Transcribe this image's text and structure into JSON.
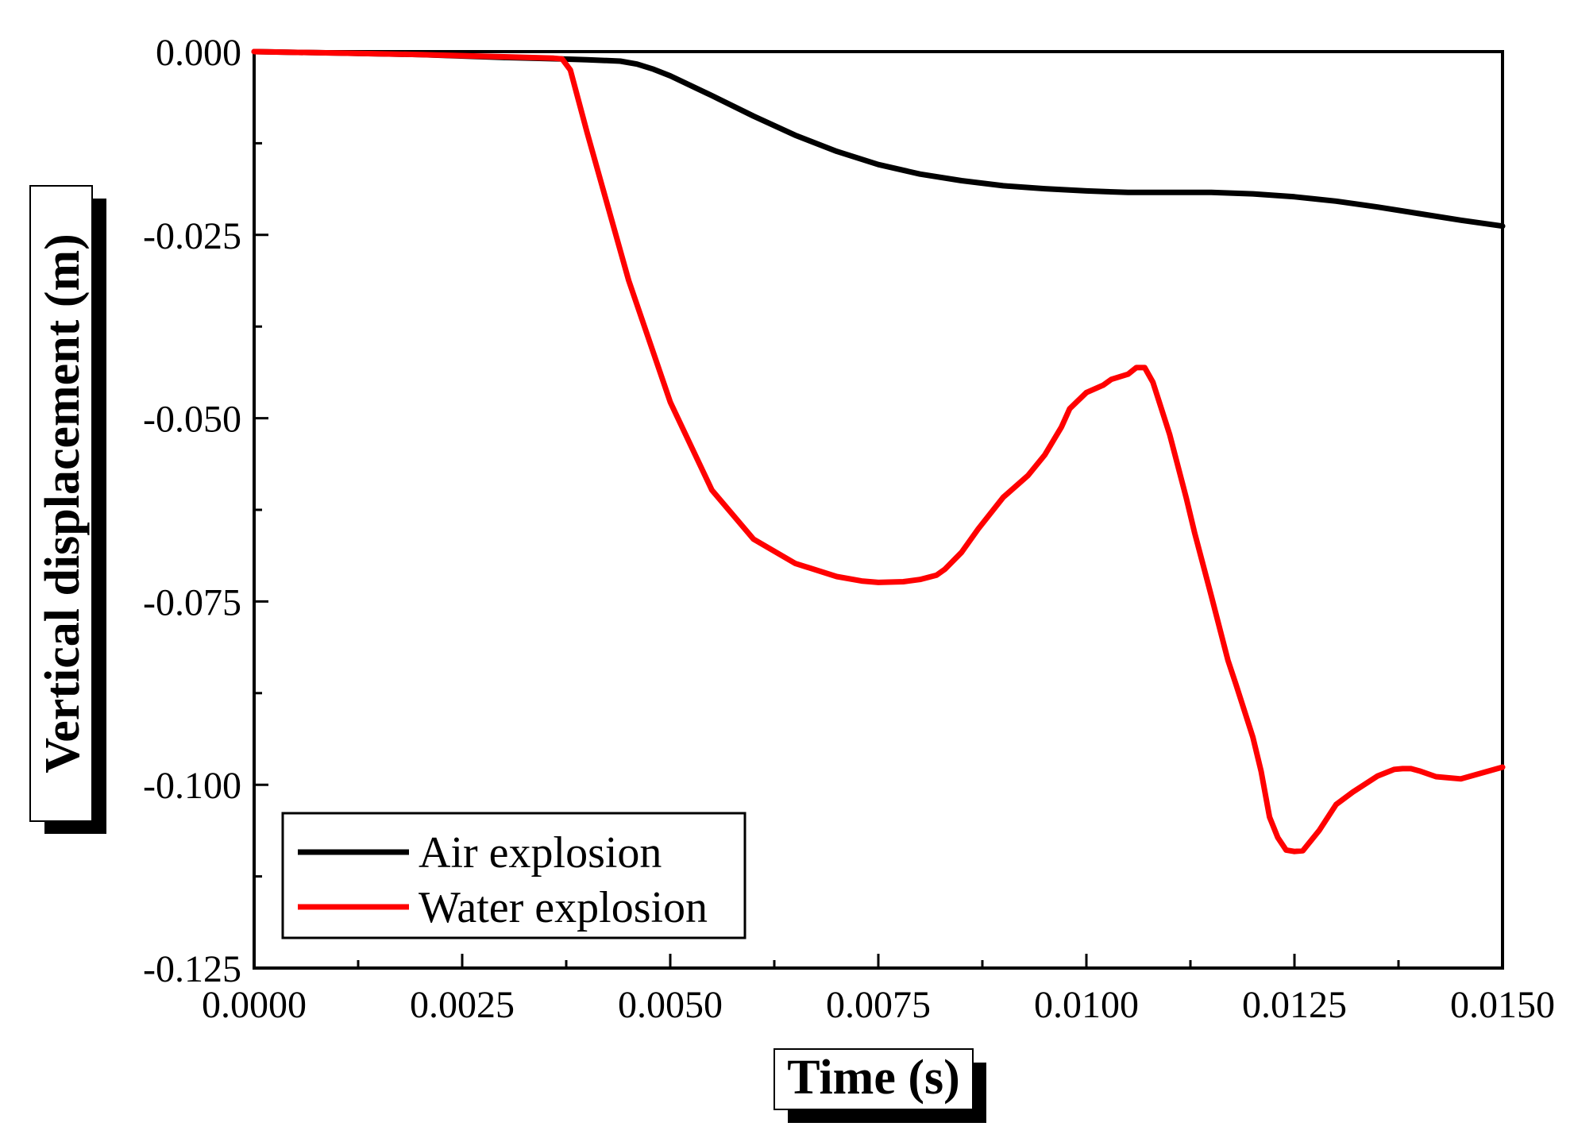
{
  "chart_data": {
    "type": "line",
    "title": "",
    "xlabel": "Time (s)",
    "ylabel": "Vertical displacement (m)",
    "xlim": [
      0,
      0.015
    ],
    "ylim": [
      -0.125,
      0
    ],
    "xticks": [
      0,
      0.0025,
      0.005,
      0.0075,
      0.01,
      0.0125,
      0.015
    ],
    "xtick_labels": [
      "0.0000",
      "0.0025",
      "0.0050",
      "0.0075",
      "0.0100",
      "0.0125",
      "0.0150"
    ],
    "yticks": [
      0,
      -0.025,
      -0.05,
      -0.075,
      -0.1,
      -0.125
    ],
    "ytick_labels": [
      "0.000",
      "-0.025",
      "-0.050",
      "-0.075",
      "-0.100",
      "-0.125"
    ],
    "grid": false,
    "legend_position": "bottom-left",
    "series": [
      {
        "name": "Air explosion",
        "color": "#000000",
        "x": [
          0,
          0.001,
          0.002,
          0.003,
          0.0037,
          0.004,
          0.0044,
          0.0046,
          0.0048,
          0.005,
          0.0055,
          0.006,
          0.0065,
          0.007,
          0.0075,
          0.008,
          0.0085,
          0.009,
          0.0095,
          0.01,
          0.0105,
          0.011,
          0.0115,
          0.012,
          0.0125,
          0.013,
          0.0135,
          0.014,
          0.0145,
          0.015
        ],
        "y": [
          0,
          -0.0002,
          -0.0004,
          -0.0008,
          -0.001,
          -0.0011,
          -0.0013,
          -0.0017,
          -0.0024,
          -0.0033,
          -0.006,
          -0.0088,
          -0.0114,
          -0.0136,
          -0.0154,
          -0.0167,
          -0.0176,
          -0.0183,
          -0.0187,
          -0.019,
          -0.0192,
          -0.0192,
          -0.0192,
          -0.0194,
          -0.0198,
          -0.0204,
          -0.0212,
          -0.0221,
          -0.023,
          -0.0238
        ]
      },
      {
        "name": "Water explosion",
        "color": "#ff0000",
        "x": [
          0,
          0.001,
          0.002,
          0.003,
          0.0036,
          0.0037,
          0.0038,
          0.004,
          0.0045,
          0.005,
          0.0055,
          0.006,
          0.0065,
          0.007,
          0.0073,
          0.0075,
          0.0078,
          0.008,
          0.0082,
          0.0083,
          0.0085,
          0.0087,
          0.009,
          0.0093,
          0.0095,
          0.0097,
          0.0098,
          0.01,
          0.0102,
          0.0103,
          0.0105,
          0.0106,
          0.0107,
          0.0108,
          0.011,
          0.0112,
          0.0113,
          0.0115,
          0.0117,
          0.0118,
          0.012,
          0.0121,
          0.0122,
          0.0123,
          0.0124,
          0.0125,
          0.0126,
          0.0128,
          0.013,
          0.0132,
          0.0135,
          0.0137,
          0.0138,
          0.0139,
          0.014,
          0.0142,
          0.0145,
          0.015
        ],
        "y": [
          0,
          -0.0002,
          -0.0004,
          -0.0007,
          -0.0009,
          -0.001,
          -0.0025,
          -0.011,
          -0.0312,
          -0.0478,
          -0.0598,
          -0.0665,
          -0.0698,
          -0.0716,
          -0.0722,
          -0.0724,
          -0.0723,
          -0.072,
          -0.0714,
          -0.0706,
          -0.0683,
          -0.0651,
          -0.0608,
          -0.0578,
          -0.055,
          -0.0512,
          -0.0487,
          -0.0465,
          -0.0455,
          -0.0447,
          -0.044,
          -0.0431,
          -0.0431,
          -0.0451,
          -0.0522,
          -0.0609,
          -0.0656,
          -0.0742,
          -0.083,
          -0.0864,
          -0.0935,
          -0.0982,
          -0.1044,
          -0.1072,
          -0.1089,
          -0.1091,
          -0.109,
          -0.1062,
          -0.1027,
          -0.101,
          -0.0988,
          -0.0979,
          -0.0978,
          -0.0978,
          -0.0981,
          -0.0989,
          -0.0992,
          -0.0976
        ]
      }
    ]
  }
}
